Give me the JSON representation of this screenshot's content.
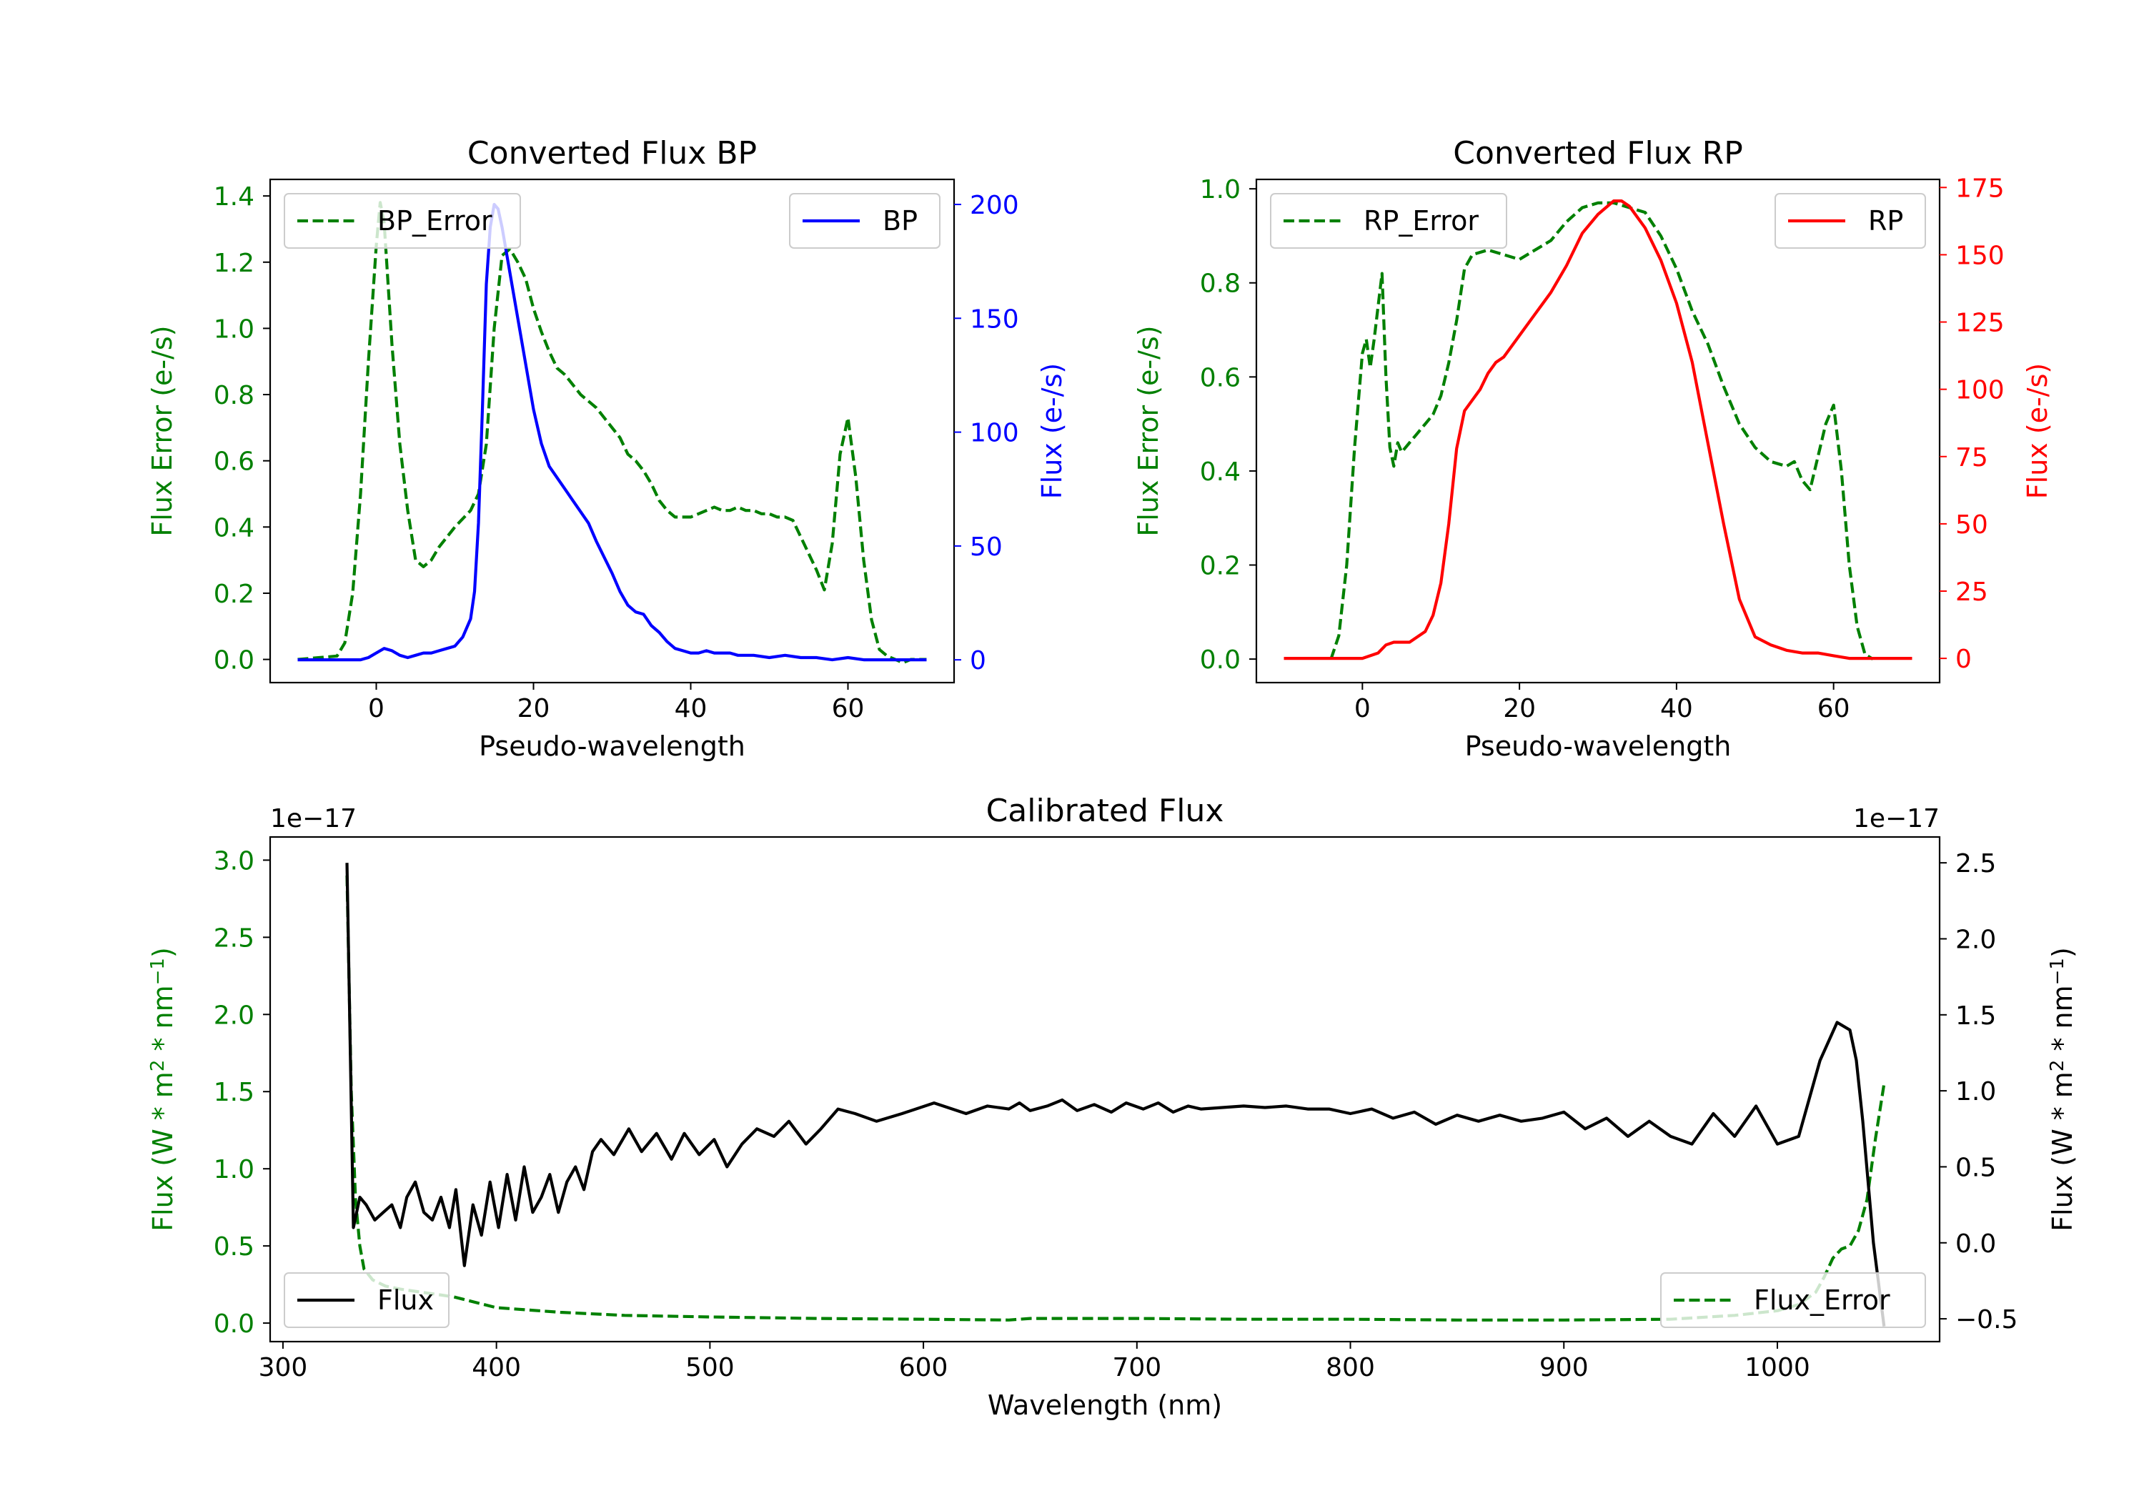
{
  "colors": {
    "error": "#008000",
    "bp": "#0000ff",
    "rp": "#ff0000",
    "flux": "#000000",
    "axis": "#000000"
  },
  "chart_data": [
    {
      "id": "bp",
      "type": "line",
      "title": "Converted Flux BP",
      "xlabel": "Pseudo-wavelength",
      "ylabel_left": "Flux Error (e-/s)",
      "ylabel_right": "Flux (e-/s)",
      "xlim": [
        -13.5,
        73.5
      ],
      "ylim_left": [
        -0.07,
        1.45
      ],
      "ylim_right": [
        -10,
        211
      ],
      "xticks": [
        0,
        20,
        40,
        60
      ],
      "yticks_left": [
        0.0,
        0.2,
        0.4,
        0.6,
        0.8,
        1.0,
        1.2,
        1.4
      ],
      "yticks_right": [
        0,
        50,
        100,
        150,
        200
      ],
      "legend_left": "BP_Error",
      "legend_right": "BP",
      "series": [
        {
          "name": "BP_Error",
          "axis": "left",
          "style": "dashed",
          "color": "error",
          "x": [
            -10,
            -5,
            -4,
            -3,
            -2,
            -1,
            0,
            0.5,
            1,
            2,
            3,
            4,
            5,
            6,
            7,
            8,
            10,
            12,
            13,
            14,
            15,
            16,
            17,
            18,
            19,
            20,
            21,
            22,
            23,
            24,
            25,
            26,
            27,
            28,
            29,
            30,
            31,
            32,
            33,
            34,
            35,
            36,
            37,
            38,
            39,
            40,
            41,
            42,
            43,
            44,
            45,
            46,
            47,
            48,
            49,
            50,
            51,
            52,
            53,
            54,
            55,
            56,
            57,
            58,
            59,
            60,
            61,
            62,
            63,
            64,
            65,
            66,
            67,
            68,
            70
          ],
          "y": [
            0.0,
            0.01,
            0.05,
            0.2,
            0.5,
            0.9,
            1.25,
            1.38,
            1.32,
            0.95,
            0.65,
            0.45,
            0.3,
            0.28,
            0.3,
            0.34,
            0.4,
            0.45,
            0.5,
            0.65,
            1.0,
            1.22,
            1.24,
            1.2,
            1.15,
            1.06,
            0.99,
            0.93,
            0.88,
            0.86,
            0.83,
            0.8,
            0.78,
            0.76,
            0.73,
            0.7,
            0.67,
            0.62,
            0.6,
            0.57,
            0.53,
            0.48,
            0.45,
            0.43,
            0.43,
            0.43,
            0.44,
            0.45,
            0.46,
            0.45,
            0.45,
            0.46,
            0.45,
            0.45,
            0.44,
            0.44,
            0.43,
            0.43,
            0.42,
            0.37,
            0.32,
            0.27,
            0.21,
            0.35,
            0.62,
            0.73,
            0.55,
            0.3,
            0.12,
            0.03,
            0.01,
            0.0,
            -0.01,
            0.0,
            0.0
          ]
        },
        {
          "name": "BP",
          "axis": "right",
          "style": "solid",
          "color": "bp",
          "x": [
            -10,
            -5,
            -3,
            -2,
            -1,
            0,
            1,
            2,
            3,
            4,
            5,
            6,
            7,
            8,
            9,
            10,
            11,
            12,
            12.5,
            13,
            13.5,
            14,
            14.5,
            15,
            15.5,
            16,
            16.5,
            17,
            18,
            19,
            20,
            21,
            22,
            23,
            24,
            25,
            26,
            27,
            28,
            29,
            30,
            31,
            32,
            33,
            34,
            35,
            36,
            37,
            38,
            39,
            40,
            41,
            42,
            43,
            44,
            45,
            46,
            48,
            50,
            52,
            54,
            56,
            58,
            60,
            62,
            65,
            70
          ],
          "y": [
            0,
            0,
            0,
            0,
            1,
            3,
            5,
            4,
            2,
            1,
            2,
            3,
            3,
            4,
            5,
            6,
            10,
            18,
            30,
            60,
            110,
            165,
            190,
            200,
            198,
            190,
            180,
            170,
            150,
            130,
            110,
            95,
            85,
            80,
            75,
            70,
            65,
            60,
            52,
            45,
            38,
            30,
            24,
            21,
            20,
            15,
            12,
            8,
            5,
            4,
            3,
            3,
            4,
            3,
            3,
            3,
            2,
            2,
            1,
            2,
            1,
            1,
            0,
            1,
            0,
            0,
            0
          ]
        }
      ]
    },
    {
      "id": "rp",
      "type": "line",
      "title": "Converted Flux RP",
      "xlabel": "Pseudo-wavelength",
      "ylabel_left": "Flux Error (e-/s)",
      "ylabel_right": "Flux (e-/s)",
      "xlim": [
        -13.5,
        73.5
      ],
      "ylim_left": [
        -0.05,
        1.02
      ],
      "ylim_right": [
        -9,
        178
      ],
      "xticks": [
        0,
        20,
        40,
        60
      ],
      "yticks_left": [
        0.0,
        0.2,
        0.4,
        0.6,
        0.8,
        1.0
      ],
      "yticks_right": [
        0,
        25,
        50,
        75,
        100,
        125,
        150,
        175
      ],
      "legend_left": "RP_Error",
      "legend_right": "RP",
      "series": [
        {
          "name": "RP_Error",
          "axis": "left",
          "style": "dashed",
          "color": "error",
          "x": [
            -4,
            -3,
            -2,
            -1,
            0,
            0.5,
            1,
            1.5,
            2,
            2.5,
            3,
            3.5,
            4,
            4.5,
            5,
            6,
            7,
            8,
            9,
            10,
            11,
            12,
            13,
            14,
            16,
            18,
            20,
            22,
            24,
            26,
            28,
            30,
            32,
            34,
            36,
            38,
            40,
            42,
            44,
            46,
            48,
            50,
            52,
            54,
            55,
            56,
            57,
            58,
            59,
            60,
            61,
            62,
            63,
            64,
            65
          ],
          "y": [
            0.0,
            0.05,
            0.2,
            0.45,
            0.65,
            0.68,
            0.62,
            0.68,
            0.75,
            0.82,
            0.6,
            0.45,
            0.41,
            0.46,
            0.44,
            0.46,
            0.48,
            0.5,
            0.52,
            0.56,
            0.63,
            0.72,
            0.83,
            0.86,
            0.87,
            0.86,
            0.85,
            0.87,
            0.89,
            0.93,
            0.96,
            0.97,
            0.97,
            0.96,
            0.95,
            0.9,
            0.83,
            0.74,
            0.67,
            0.58,
            0.5,
            0.45,
            0.42,
            0.41,
            0.42,
            0.38,
            0.36,
            0.43,
            0.5,
            0.54,
            0.4,
            0.2,
            0.07,
            0.01,
            0.0
          ]
        },
        {
          "name": "RP",
          "axis": "right",
          "style": "solid",
          "color": "rp",
          "x": [
            -10,
            -5,
            0,
            2,
            3,
            4,
            6,
            8,
            9,
            10,
            11,
            12,
            13,
            14,
            15,
            16,
            17,
            18,
            20,
            22,
            24,
            26,
            28,
            30,
            32,
            33,
            34,
            36,
            38,
            40,
            42,
            44,
            46,
            48,
            50,
            52,
            54,
            56,
            58,
            60,
            62,
            65,
            70
          ],
          "y": [
            0,
            0,
            0,
            2,
            5,
            6,
            6,
            10,
            16,
            28,
            50,
            78,
            92,
            96,
            100,
            106,
            110,
            112,
            120,
            128,
            136,
            146,
            158,
            165,
            170,
            170,
            168,
            160,
            148,
            132,
            110,
            80,
            50,
            22,
            8,
            5,
            3,
            2,
            2,
            1,
            0,
            0,
            0
          ]
        }
      ]
    },
    {
      "id": "calibrated",
      "type": "line",
      "title": "Calibrated Flux",
      "xlabel": "Wavelength (nm)",
      "ylabel_left": "Flux (W * m^2 * nm^-1)",
      "ylabel_right": "Flux (W * m^2 * nm^-1)",
      "offset_left": "1e−17",
      "offset_right": "1e−17",
      "xlim": [
        294,
        1076
      ],
      "ylim_left": [
        -0.12,
        3.15
      ],
      "ylim_right": [
        -0.65,
        2.67
      ],
      "xticks": [
        300,
        400,
        500,
        600,
        700,
        800,
        900,
        1000
      ],
      "yticks_left": [
        0.0,
        0.5,
        1.0,
        1.5,
        2.0,
        2.5,
        3.0
      ],
      "yticks_right": [
        -0.5,
        0.0,
        0.5,
        1.0,
        1.5,
        2.0,
        2.5
      ],
      "legend_left": "Flux",
      "legend_right": "Flux_Error",
      "series": [
        {
          "name": "Flux_Error",
          "axis": "left",
          "style": "dashed",
          "color": "error",
          "x": [
            330,
            332,
            334,
            336,
            338,
            342,
            348,
            355,
            365,
            380,
            400,
            430,
            460,
            500,
            550,
            600,
            640,
            650,
            700,
            750,
            800,
            850,
            900,
            950,
            980,
            1000,
            1010,
            1018,
            1022,
            1026,
            1030,
            1034,
            1038,
            1042,
            1046,
            1050
          ],
          "y": [
            2.9,
            1.5,
            0.8,
            0.5,
            0.35,
            0.28,
            0.24,
            0.22,
            0.2,
            0.17,
            0.1,
            0.07,
            0.05,
            0.04,
            0.03,
            0.025,
            0.02,
            0.03,
            0.03,
            0.025,
            0.025,
            0.02,
            0.02,
            0.025,
            0.05,
            0.08,
            0.12,
            0.2,
            0.3,
            0.42,
            0.48,
            0.5,
            0.6,
            0.8,
            1.2,
            1.55
          ]
        },
        {
          "name": "Flux",
          "axis": "right",
          "style": "solid",
          "color": "flux",
          "x": [
            330,
            333,
            336,
            339,
            343,
            347,
            351,
            355,
            358,
            362,
            366,
            370,
            374,
            378,
            381,
            385,
            389,
            393,
            397,
            401,
            405,
            409,
            413,
            417,
            421,
            425,
            429,
            433,
            437,
            441,
            445,
            449,
            455,
            462,
            468,
            475,
            482,
            488,
            495,
            502,
            508,
            515,
            522,
            530,
            537,
            545,
            552,
            560,
            568,
            578,
            590,
            605,
            620,
            630,
            640,
            645,
            650,
            658,
            665,
            672,
            680,
            688,
            695,
            703,
            710,
            717,
            724,
            730,
            740,
            750,
            760,
            770,
            780,
            790,
            800,
            810,
            820,
            830,
            840,
            850,
            860,
            870,
            880,
            890,
            900,
            910,
            920,
            930,
            940,
            950,
            960,
            970,
            980,
            990,
            1000,
            1010,
            1020,
            1028,
            1034,
            1037,
            1040,
            1045,
            1050
          ],
          "y": [
            2.5,
            0.1,
            0.3,
            0.25,
            0.15,
            0.2,
            0.25,
            0.1,
            0.3,
            0.4,
            0.2,
            0.15,
            0.3,
            0.1,
            0.35,
            -0.15,
            0.25,
            0.05,
            0.4,
            0.1,
            0.45,
            0.15,
            0.5,
            0.2,
            0.3,
            0.45,
            0.2,
            0.4,
            0.5,
            0.35,
            0.6,
            0.68,
            0.58,
            0.75,
            0.6,
            0.72,
            0.55,
            0.72,
            0.58,
            0.68,
            0.5,
            0.65,
            0.75,
            0.7,
            0.8,
            0.65,
            0.75,
            0.88,
            0.85,
            0.8,
            0.85,
            0.92,
            0.85,
            0.9,
            0.88,
            0.92,
            0.87,
            0.9,
            0.94,
            0.87,
            0.91,
            0.86,
            0.92,
            0.88,
            0.92,
            0.86,
            0.9,
            0.88,
            0.89,
            0.9,
            0.89,
            0.9,
            0.88,
            0.88,
            0.85,
            0.88,
            0.82,
            0.86,
            0.78,
            0.84,
            0.8,
            0.84,
            0.8,
            0.82,
            0.86,
            0.75,
            0.82,
            0.7,
            0.8,
            0.7,
            0.65,
            0.85,
            0.7,
            0.9,
            0.65,
            0.7,
            1.2,
            1.45,
            1.4,
            1.2,
            0.8,
            0.0,
            -0.55
          ]
        }
      ]
    }
  ]
}
